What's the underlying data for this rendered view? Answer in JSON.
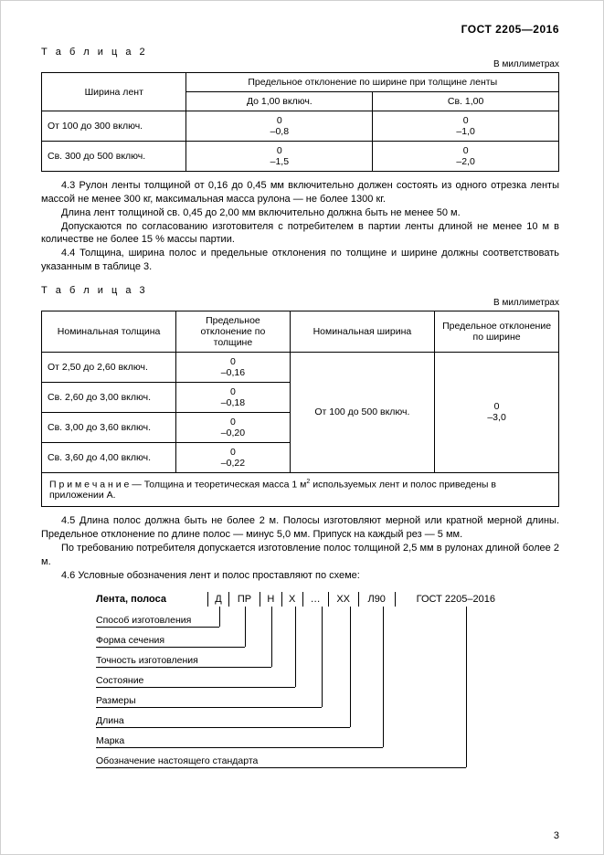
{
  "header": "ГОСТ  2205—2016",
  "pagenum": "3",
  "table2": {
    "label": "Т а б л и ц а  2",
    "unit": "В миллиметрах",
    "h_width": "Ширина лент",
    "h_dev": "Предельное отклонение по ширине при толщине ленты",
    "h_c1": "До 1,00 включ.",
    "h_c2": "Св. 1,00",
    "rows": [
      {
        "w": "От 100 до 300 включ.",
        "a": "0",
        "a2": "–0,8",
        "b": "0",
        "b2": "–1,0"
      },
      {
        "w": "Св. 300 до 500 включ.",
        "a": "0",
        "a2": "–1,5",
        "b": "0",
        "b2": "–2,0"
      }
    ]
  },
  "p43a": "4.3  Рулон ленты толщиной от 0,16 до 0,45 мм включительно должен состоять из одного отрезка ленты массой не менее 300 кг, максимальная масса рулона — не более 1300 кг.",
  "p43b": "Длина лент толщиной св. 0,45 до 2,00 мм включительно должна быть не менее 50 м.",
  "p43c": "Допускаются по согласованию изготовителя с потребителем в партии ленты длиной не менее 10 м в количестве не более 15 % массы партии.",
  "p44": "4.4  Толщина, ширина полос и предельные отклонения по толщине и ширине должны соответствовать указанным в таблице 3.",
  "table3": {
    "label": "Т а б л и ц а  3",
    "unit": "В миллиметрах",
    "h1": "Номинальная толщина",
    "h2": "Предельное отклонение по толщине",
    "h3": "Номинальная ширина",
    "h4": "Предельное отклонение по ширине",
    "rows": [
      {
        "t": "От 2,50 до 2,60 включ.",
        "d": "0",
        "d2": "–0,16"
      },
      {
        "t": "Св. 2,60 до 3,00 включ.",
        "d": "0",
        "d2": "–0,18"
      },
      {
        "t": "Св. 3,00 до 3,60 включ.",
        "d": "0",
        "d2": "–0,20"
      },
      {
        "t": "Св. 3,60 до 4,00 включ.",
        "d": "0",
        "d2": "–0,22"
      }
    ],
    "nomw": "От 100 до 500 включ.",
    "devw1": "0",
    "devw2": "–3,0",
    "note": "П р и м е ч а н и е — Толщина и теоретическая масса 1 м² используемых лент и полос приведены в приложении А."
  },
  "p45": "4.5  Длина полос должна быть не более 2 м. Полосы изготовляют мерной или кратной мерной длины. Предельное отклонение по длине полос — минус 5,0 мм. Припуск на каждый рез — 5 мм.",
  "p45b": "По требованию потребителя допускается изготовление полос толщиной 2,5 мм в рулонах длиной более 2 м.",
  "p46": "4.6  Условные обозначения лент и полос проставляют по схеме:",
  "scheme": {
    "head": [
      "Лента, полоса",
      "Д",
      "ПР",
      "Н",
      "Х",
      "…",
      "ХХ",
      "Л90",
      "ГОСТ 2205–2016"
    ],
    "labels": [
      "Способ изготовления",
      "Форма сечения",
      "Точность изготовления",
      "Состояние",
      "Размеры",
      "Длина",
      "Марка",
      "Обозначение настоящего стандарта"
    ],
    "x": [
      135,
      163,
      192,
      218,
      247,
      278,
      314,
      405
    ]
  }
}
